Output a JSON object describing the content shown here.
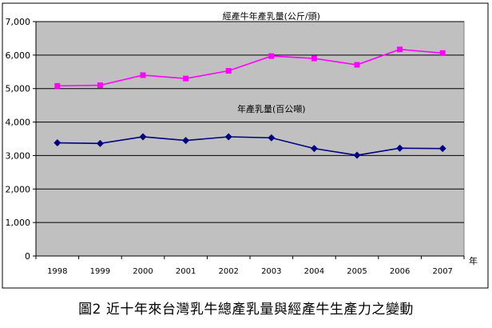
{
  "caption": "圖2 近十年來台灣乳牛總產乳量與經產牛生產力之變動",
  "chart_data": {
    "type": "line",
    "categories": [
      "1998",
      "1999",
      "2000",
      "2001",
      "2002",
      "2003",
      "2004",
      "2005",
      "2006",
      "2007"
    ],
    "x_unit": "年",
    "ylim": [
      0,
      7000
    ],
    "y_ticks": [
      0,
      1000,
      2000,
      3000,
      4000,
      5000,
      6000,
      7000
    ],
    "y_tick_labels": [
      "0",
      "1,000",
      "2,000",
      "3,000",
      "4,000",
      "5,000",
      "6,000",
      "7,000"
    ],
    "grid": true,
    "plot_background": "#c0c0c0",
    "series": [
      {
        "name": "經產牛年產乳量(公斤/頭)",
        "color": "#ff00ff",
        "marker": "square",
        "values": [
          5080,
          5100,
          5400,
          5300,
          5530,
          5970,
          5900,
          5710,
          6170,
          6060
        ]
      },
      {
        "name": "年產乳量(百公噸)",
        "color": "#000080",
        "marker": "diamond",
        "values": [
          3380,
          3360,
          3560,
          3450,
          3560,
          3530,
          3210,
          3010,
          3220,
          3210
        ]
      }
    ]
  }
}
